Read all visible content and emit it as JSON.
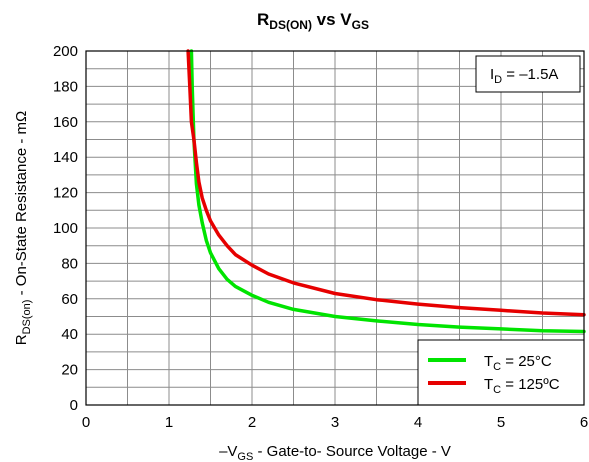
{
  "chart_data": {
    "type": "line",
    "title": {
      "main": "R",
      "main_sub": "DS(ON)",
      "vs": " vs V",
      "vs_sub": "GS"
    },
    "xlabel": {
      "prefix": "–V",
      "sub": "GS",
      "rest": " - Gate-to- Source Voltage - V"
    },
    "ylabel": {
      "main": "R",
      "sub": "DS(on)",
      "rest": " - On-State Resistance - mΩ"
    },
    "xlim": [
      0,
      6
    ],
    "ylim": [
      0,
      200
    ],
    "xticks": [
      "0",
      "1",
      "2",
      "3",
      "4",
      "5",
      "6"
    ],
    "yticks": [
      "0",
      "20",
      "40",
      "60",
      "80",
      "100",
      "120",
      "140",
      "160",
      "180",
      "200"
    ],
    "grid": true,
    "annotation": {
      "main": "I",
      "sub": "D",
      "rest": " = –1.5A"
    },
    "legend_position": "bottom-right",
    "series": [
      {
        "name": "T",
        "name_sub": "C",
        "name_rest": " = 25°C",
        "color": "#00e400",
        "x": [
          1.27,
          1.28,
          1.3,
          1.33,
          1.36,
          1.4,
          1.45,
          1.5,
          1.6,
          1.7,
          1.8,
          2.0,
          2.2,
          2.5,
          3.0,
          3.5,
          4.0,
          4.5,
          5.0,
          5.5,
          6.0
        ],
        "y": [
          200,
          180,
          150,
          125,
          113,
          103,
          93,
          86,
          77,
          71,
          67,
          62,
          58,
          54,
          50,
          47.5,
          45.5,
          44,
          43,
          42,
          41.5
        ]
      },
      {
        "name": "T",
        "name_sub": "C",
        "name_rest": " = 125ºC",
        "color": "#e60000",
        "x": [
          1.23,
          1.25,
          1.27,
          1.3,
          1.33,
          1.36,
          1.4,
          1.45,
          1.5,
          1.6,
          1.7,
          1.8,
          2.0,
          2.2,
          2.5,
          3.0,
          3.5,
          4.0,
          4.5,
          5.0,
          5.5,
          6.0
        ],
        "y": [
          200,
          180,
          160,
          150,
          137,
          126,
          117,
          110,
          104,
          96,
          90,
          85,
          79,
          74,
          69,
          63,
          59.5,
          57,
          55,
          53.5,
          52,
          51
        ]
      }
    ]
  }
}
